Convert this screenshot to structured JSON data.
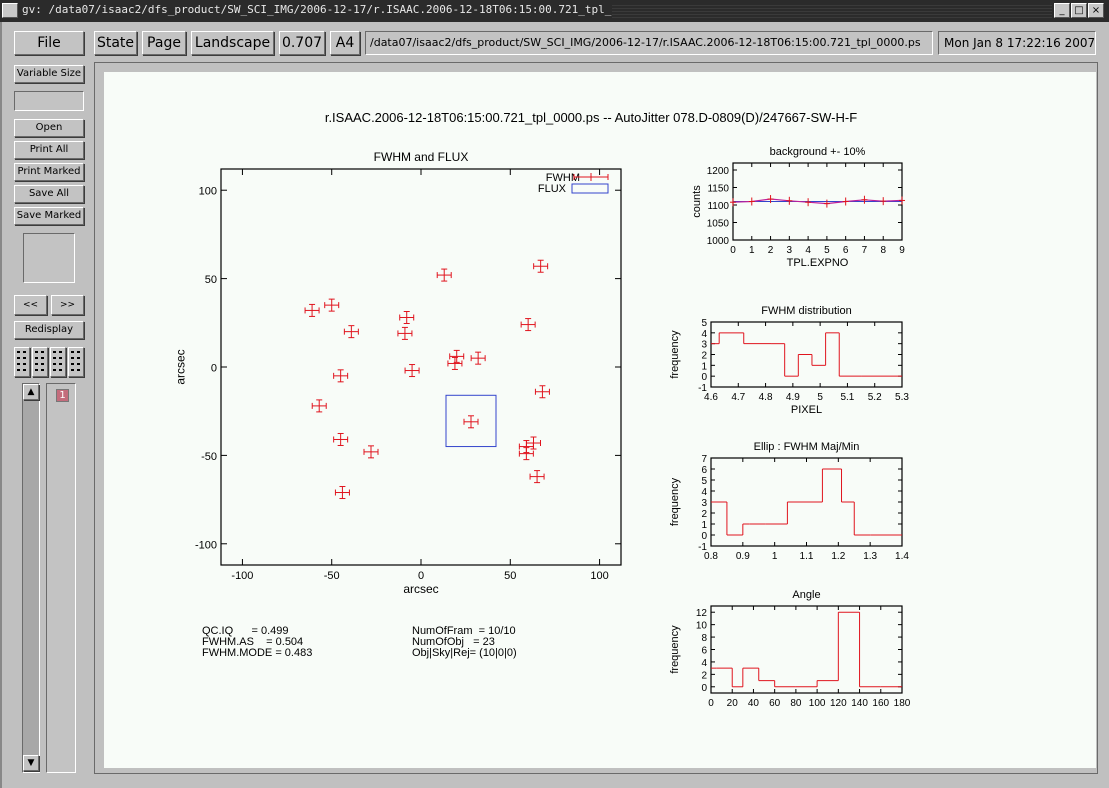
{
  "window": {
    "title": "gv: /data07/isaac2/dfs_product/SW_SCI_IMG/2006-12-17/r.ISAAC.2006-12-18T06:15:00.721_tpl_0000.ps"
  },
  "toolbar": {
    "file": "File",
    "state": "State",
    "page": "Page",
    "orientation": "Landscape",
    "scale": "0.707",
    "paper": "A4",
    "path": "/data07/isaac2/dfs_product/SW_SCI_IMG/2006-12-17/r.ISAAC.2006-12-18T06:15:00.721_tpl_0000.ps",
    "date": "Mon Jan  8 17:22:16 2007"
  },
  "side": {
    "variable_size": "Variable Size",
    "open": "Open",
    "print_all": "Print All",
    "print_marked": "Print Marked",
    "save_all": "Save All",
    "save_marked": "Save Marked",
    "prev": "<<",
    "next": ">>",
    "redisplay": "Redisplay",
    "page_number": "1"
  },
  "document": {
    "title": "r.ISAAC.2006-12-18T06:15:00.721_tpl_0000.ps -- AutoJitter 078.D-0809(D)/247667-SW-H-F",
    "stats_left": [
      "QC.IQ      = 0.499",
      "FWHM.AS    = 0.504",
      "FWHM.MODE = 0.483"
    ],
    "stats_right": [
      "NumOfFram  = 10/10",
      "NumOfObj   = 23",
      "Obj|Sky|Rej= (10|0|0)"
    ]
  },
  "colors": {
    "red": "#e0141e",
    "blue": "#3344cc",
    "magenta": "#c0209a"
  },
  "chart_data": [
    {
      "type": "scatter",
      "title": "FWHM and FLUX",
      "xlabel": "arcsec",
      "ylabel": "arcsec",
      "xlim": [
        -112,
        112
      ],
      "ylim": [
        -112,
        112
      ],
      "xticks": [
        -100,
        -50,
        0,
        50,
        100
      ],
      "yticks": [
        -100,
        -50,
        0,
        50,
        100
      ],
      "xtick_labels": [
        "-100",
        "-50",
        "0",
        "50",
        "100"
      ],
      "ytick_labels": [
        "-100",
        "-50",
        "0",
        "50",
        "100"
      ],
      "legend": "top-right",
      "legend_entries": [
        "FWHM",
        "FLUX"
      ],
      "grid": false,
      "points": [
        {
          "x": -61,
          "y": 32
        },
        {
          "x": -50,
          "y": 35
        },
        {
          "x": -39,
          "y": 20
        },
        {
          "x": -45,
          "y": -5
        },
        {
          "x": -57,
          "y": -22
        },
        {
          "x": -45,
          "y": -41
        },
        {
          "x": -28,
          "y": -48
        },
        {
          "x": -44,
          "y": -71
        },
        {
          "x": -8,
          "y": 28
        },
        {
          "x": -9,
          "y": 19
        },
        {
          "x": -5,
          "y": -2
        },
        {
          "x": 13,
          "y": 52
        },
        {
          "x": 20,
          "y": 6
        },
        {
          "x": 19,
          "y": 2
        },
        {
          "x": 32,
          "y": 5
        },
        {
          "x": 28,
          "y": -31
        },
        {
          "x": 67,
          "y": 57
        },
        {
          "x": 60,
          "y": 24
        },
        {
          "x": 68,
          "y": -14
        },
        {
          "x": 63,
          "y": -43
        },
        {
          "x": 59,
          "y": -45
        },
        {
          "x": 59,
          "y": -49
        },
        {
          "x": 65,
          "y": -62
        }
      ],
      "flux_box": {
        "x0": 14,
        "x1": 42,
        "y0": -45,
        "y1": -16
      }
    },
    {
      "type": "line",
      "title": "background +- 10%",
      "xlabel": "TPL.EXPNO",
      "ylabel": "counts",
      "xlim": [
        0,
        9
      ],
      "ylim": [
        1000,
        1220
      ],
      "xticks": [
        0,
        1,
        2,
        3,
        4,
        5,
        6,
        7,
        8,
        9
      ],
      "yticks": [
        1000,
        1050,
        1100,
        1150,
        1200
      ],
      "xtick_labels": [
        "0",
        "1",
        "2",
        "3",
        "4",
        "5",
        "6",
        "7",
        "8",
        "9"
      ],
      "ytick_labels": [
        "1000",
        "1050",
        "1100",
        "1150",
        "1200"
      ],
      "x": [
        0,
        1,
        2,
        3,
        4,
        5,
        6,
        7,
        8,
        9
      ],
      "y": [
        1108,
        1110,
        1117,
        1112,
        1108,
        1104,
        1110,
        1115,
        1111,
        1113
      ],
      "reference": 1110
    },
    {
      "type": "bar",
      "title": "FWHM distribution",
      "xlabel": "PIXEL",
      "ylabel": "frequency",
      "xlim": [
        4.6,
        5.3
      ],
      "ylim": [
        -1,
        5
      ],
      "xticks": [
        4.6,
        4.7,
        4.8,
        4.9,
        5,
        5.1,
        5.2,
        5.3
      ],
      "yticks": [
        -1,
        0,
        1,
        2,
        3,
        4,
        5
      ],
      "xtick_labels": [
        "4.6",
        "4.7",
        "4.8",
        "4.9",
        "5",
        "5.1",
        "5.2",
        "5.3"
      ],
      "ytick_labels": [
        "-1",
        "0",
        "1",
        "2",
        "3",
        "4",
        "5"
      ],
      "edges": [
        4.6,
        4.63,
        4.72,
        4.82,
        4.87,
        4.92,
        4.97,
        5.02,
        5.07,
        5.15,
        5.3
      ],
      "values": [
        3,
        4,
        3,
        3,
        0,
        2,
        1,
        4,
        0,
        0
      ]
    },
    {
      "type": "bar",
      "title": "Ellip : FWHM Maj/Min",
      "xlabel": "",
      "ylabel": "frequency",
      "xlim": [
        0.8,
        1.4
      ],
      "ylim": [
        -1,
        7
      ],
      "xticks": [
        0.8,
        0.9,
        1,
        1.1,
        1.2,
        1.3,
        1.4
      ],
      "yticks": [
        -1,
        0,
        1,
        2,
        3,
        4,
        5,
        6,
        7
      ],
      "xtick_labels": [
        "0.8",
        "0.9",
        "1",
        "1.1",
        "1.2",
        "1.3",
        "1.4"
      ],
      "ytick_labels": [
        "-1",
        "0",
        "1",
        "2",
        "3",
        "4",
        "5",
        "6",
        "7"
      ],
      "edges": [
        0.8,
        0.85,
        0.9,
        0.92,
        0.97,
        1.04,
        1.1,
        1.15,
        1.21,
        1.25,
        1.3,
        1.4
      ],
      "values": [
        3,
        0,
        1,
        1,
        1,
        3,
        3,
        6,
        3,
        0,
        0
      ]
    },
    {
      "type": "bar",
      "title": "Angle",
      "xlabel": "",
      "ylabel": "frequency",
      "xlim": [
        0,
        180
      ],
      "ylim": [
        -1,
        13
      ],
      "xticks": [
        0,
        20,
        40,
        60,
        80,
        100,
        120,
        140,
        160,
        180
      ],
      "yticks": [
        0,
        2,
        4,
        6,
        8,
        10,
        12
      ],
      "xtick_labels": [
        "0",
        "20",
        "40",
        "60",
        "80",
        "100",
        "120",
        "140",
        "160",
        "180"
      ],
      "ytick_labels": [
        "0",
        "2",
        "4",
        "6",
        "8",
        "10",
        "12"
      ],
      "edges": [
        0,
        5,
        20,
        30,
        45,
        60,
        80,
        100,
        120,
        140,
        160,
        180
      ],
      "values": [
        3,
        3,
        0,
        3,
        1,
        0,
        0,
        1,
        12,
        0,
        0
      ]
    }
  ]
}
